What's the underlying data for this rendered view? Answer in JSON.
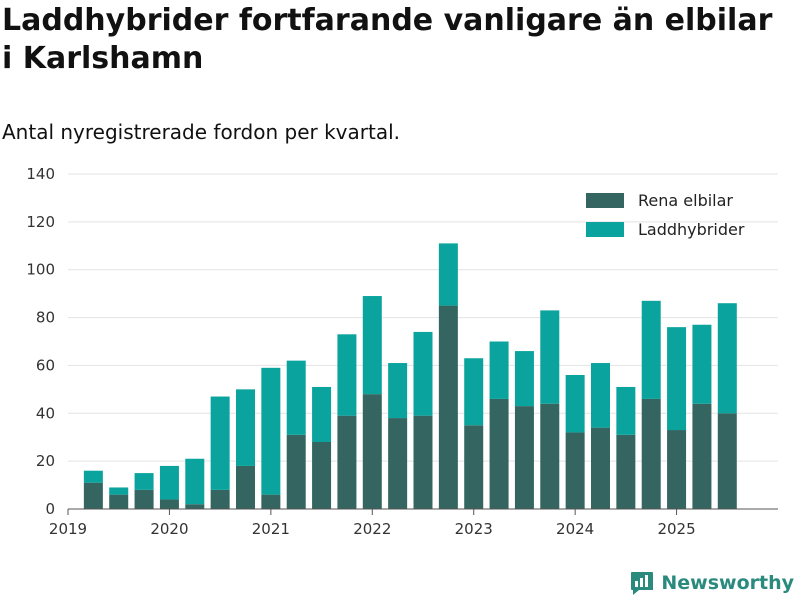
{
  "title": "Laddhybrider fortfarande vanligare än elbilar i Karlshamn",
  "subtitle": "Antal nyregistrerade fordon per kvartal.",
  "brand": {
    "name": "Newsworthy",
    "icon": "newsworthy-logo-icon"
  },
  "colors": {
    "bev": "#346560",
    "phev": "#0aa39d",
    "grid": "#e3e3e3",
    "axis": "#555555"
  },
  "chart_data": {
    "type": "bar",
    "stacked": true,
    "title": "Laddhybrider fortfarande vanligare än elbilar i Karlshamn",
    "subtitle": "Antal nyregistrerade fordon per kvartal.",
    "xlabel": "",
    "ylabel": "",
    "ylim": [
      0,
      140
    ],
    "yticks": [
      "0",
      "20",
      "40",
      "60",
      "80",
      "100",
      "120",
      "140"
    ],
    "grid": true,
    "legend_position": "top-right",
    "x_start": 2019.0,
    "x_end": 2026.0,
    "xtick_labels": [
      "2019",
      "2020",
      "2021",
      "2022",
      "2023",
      "2024",
      "2025"
    ],
    "categories": [
      "2019 Q2",
      "2019 Q3",
      "2019 Q4",
      "2020 Q1",
      "2020 Q2",
      "2020 Q3",
      "2020 Q4",
      "2021 Q1",
      "2021 Q2",
      "2021 Q3",
      "2021 Q4",
      "2022 Q1",
      "2022 Q2",
      "2022 Q3",
      "2022 Q4",
      "2023 Q1",
      "2023 Q2",
      "2023 Q3",
      "2023 Q4",
      "2024 Q1",
      "2024 Q2",
      "2024 Q3",
      "2024 Q4",
      "2025 Q1",
      "2025 Q2",
      "2025 Q3"
    ],
    "x": [
      2019.25,
      2019.5,
      2019.75,
      2020.0,
      2020.25,
      2020.5,
      2020.75,
      2021.0,
      2021.25,
      2021.5,
      2021.75,
      2022.0,
      2022.25,
      2022.5,
      2022.75,
      2023.0,
      2023.25,
      2023.5,
      2023.75,
      2024.0,
      2024.25,
      2024.5,
      2024.75,
      2025.0,
      2025.25,
      2025.5
    ],
    "series": [
      {
        "name": "Rena elbilar",
        "color": "#346560",
        "values": [
          11,
          6,
          8,
          4,
          2,
          8,
          18,
          6,
          31,
          28,
          39,
          48,
          38,
          39,
          85,
          35,
          46,
          43,
          44,
          32,
          34,
          31,
          46,
          33,
          44,
          40
        ]
      },
      {
        "name": "Laddhybrider",
        "color": "#0aa39d",
        "values": [
          5,
          3,
          7,
          14,
          19,
          39,
          32,
          53,
          31,
          23,
          34,
          41,
          23,
          35,
          26,
          28,
          24,
          23,
          39,
          24,
          27,
          20,
          41,
          43,
          33,
          46
        ]
      }
    ]
  }
}
